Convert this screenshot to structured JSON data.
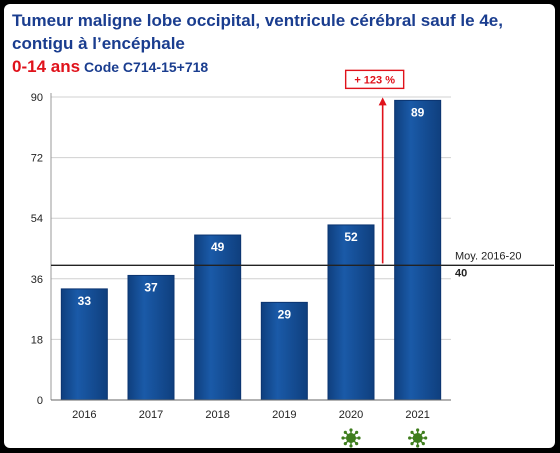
{
  "title": {
    "line1": "Tumeur maligne lobe occipital, ventricule cérébral sauf le 4e,",
    "line2": "contigu à l’encéphale",
    "age": "0-14 ans",
    "code": "Code C714-15+718"
  },
  "annotation": {
    "increase": "+ 123 %",
    "mean_label": "Moy. 2016-20",
    "mean_value_label": "40"
  },
  "icons": [
    "virus-icon",
    "virus-icon"
  ],
  "colors": {
    "bar": "#1a5aa8",
    "bar_dark": "#0f3f7e",
    "title": "#1a3d8f",
    "accent": "#e0121b",
    "virus": "#3f7d1e"
  },
  "chart_data": {
    "type": "bar",
    "categories": [
      "2016",
      "2017",
      "2018",
      "2019",
      "2020",
      "2021"
    ],
    "values": [
      33,
      37,
      49,
      29,
      52,
      89
    ],
    "title": "",
    "xlabel": "",
    "ylabel": "",
    "ylim": [
      0,
      90
    ],
    "yticks": [
      0,
      18,
      36,
      54,
      72,
      90
    ],
    "grid": true,
    "reference_line": 40
  }
}
